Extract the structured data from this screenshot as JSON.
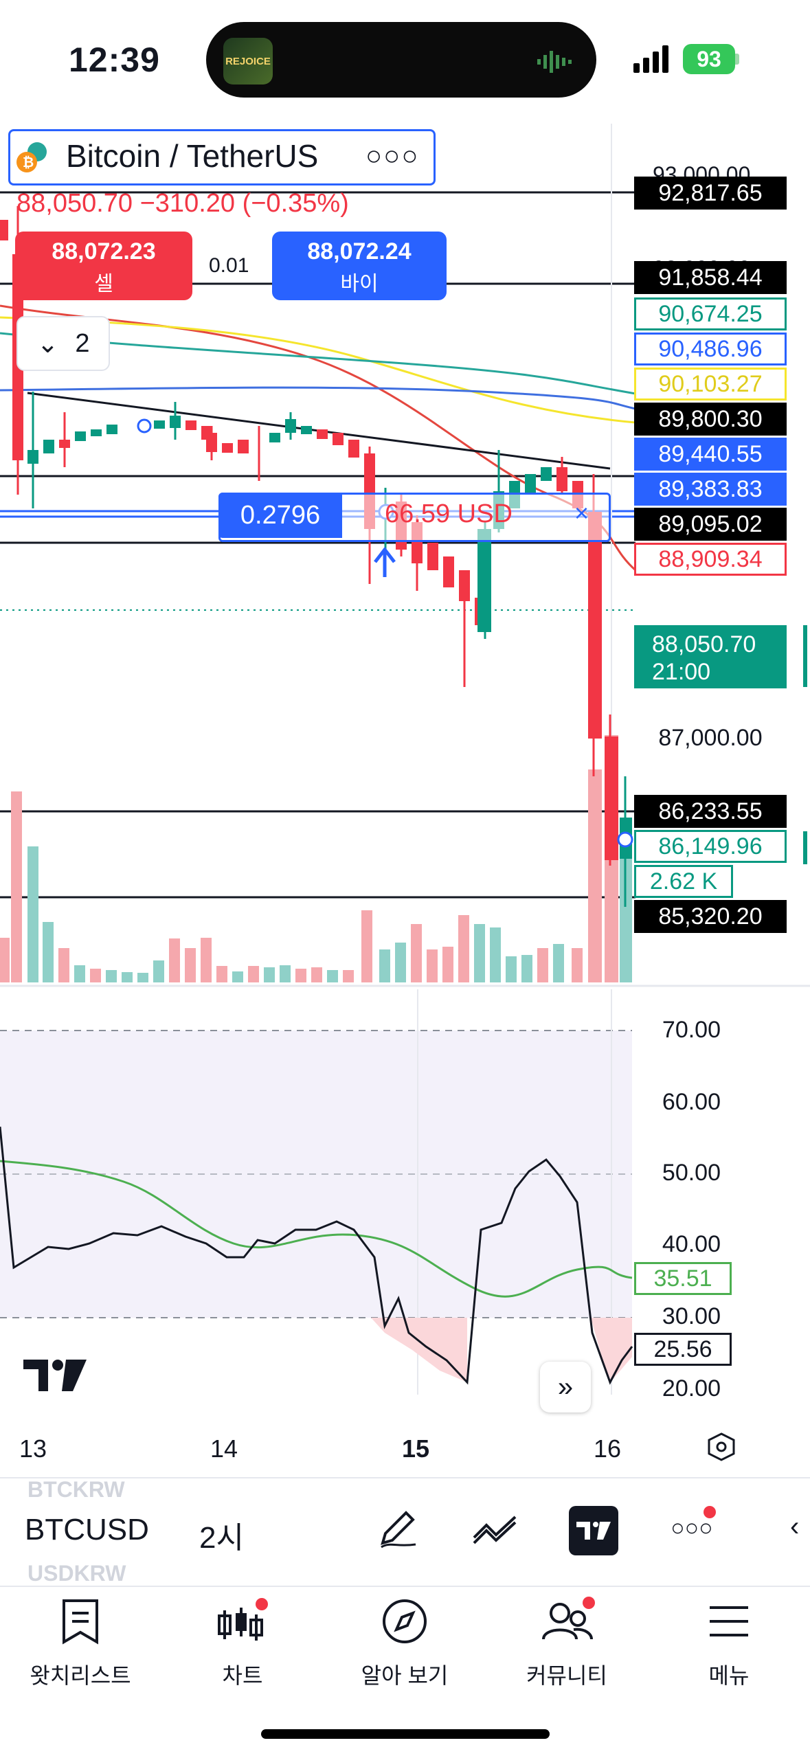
{
  "status_bar": {
    "time": "12:39",
    "battery": "93",
    "island_art": "REJOICE"
  },
  "header": {
    "symbol": "Bitcoin / TetherUS",
    "ohlc_line": "88,050.70  −310.20 (−0.35%)",
    "sell": {
      "price": "88,072.23",
      "label": "셀"
    },
    "buy": {
      "price": "88,072.24",
      "label": "바이"
    },
    "spread": "0.01",
    "collapse_count": "2"
  },
  "price_axis": {
    "labels": [
      {
        "text": "92,817.65",
        "style": "black"
      },
      {
        "text": "91,858.44",
        "style": "black"
      },
      {
        "text": "90,674.25",
        "style": "teal-outline"
      },
      {
        "text": "90,486.96",
        "style": "blue-outline"
      },
      {
        "text": "90,103.27",
        "style": "yellow-outline"
      },
      {
        "text": "89,800.30",
        "style": "black"
      },
      {
        "text": "89,440.55",
        "style": "blue"
      },
      {
        "text": "89,383.83",
        "style": "blue"
      },
      {
        "text": "89,095.02",
        "style": "black"
      },
      {
        "text": "88,909.34",
        "style": "red-outline"
      },
      {
        "text": "87,000.00",
        "style": "plain"
      },
      {
        "text": "86,233.55",
        "style": "black"
      },
      {
        "text": "86,149.96",
        "style": "teal-outline"
      },
      {
        "text": "2.62 K",
        "style": "teal-outline"
      },
      {
        "text": "85,320.20",
        "style": "black"
      }
    ],
    "partial_top": "93,000.00",
    "partial_mid": "92,000.00",
    "last_price": "88,050.70",
    "countdown": "21:00"
  },
  "position": {
    "qty": "0.2796",
    "pnl": "66.59 USD",
    "close": "×"
  },
  "rsi": {
    "levels": [
      "70.00",
      "60.00",
      "50.00",
      "40.00",
      "30.00",
      "20.00"
    ],
    "ma_value": "35.51",
    "rsi_value": "25.56"
  },
  "time_axis": [
    "13",
    "14",
    "15",
    "16"
  ],
  "toolbar": {
    "ghost_top": "BTCKRW",
    "ghost_bottom": "USDKRW",
    "ticker": "BTCUSD",
    "interval": "2시"
  },
  "nav": [
    {
      "label": "왓치리스트",
      "icon": "bookmark-icon"
    },
    {
      "label": "차트",
      "icon": "candles-icon"
    },
    {
      "label": "알아 보기",
      "icon": "compass-icon"
    },
    {
      "label": "커뮤니티",
      "icon": "community-icon"
    },
    {
      "label": "메뉴",
      "icon": "menu-icon"
    }
  ],
  "colors": {
    "up": "#26a69a",
    "down": "#f23645",
    "blue": "#2962ff",
    "teal": "#089981",
    "yellow": "#ffeb3b"
  }
}
